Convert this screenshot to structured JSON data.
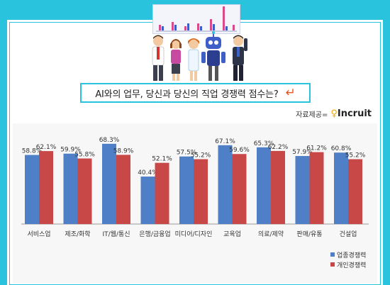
{
  "header": {
    "question": "AI와의 업무, 당신과 당신의 직업 경쟁력 점수는?",
    "arrow_icon": "return-arrow-icon",
    "source_label": "자료제공=",
    "source_brand": "Incruit"
  },
  "colors": {
    "background": "#29c3dd",
    "series_job": "#4f7fc6",
    "series_personal": "#c84848"
  },
  "chart_data": {
    "type": "bar",
    "categories": [
      "서비스업",
      "제조/화학",
      "IT/웹/통신",
      "은행/금융업",
      "미디어/디자인",
      "교육업",
      "의료/제약",
      "판매/유통",
      "건설업"
    ],
    "series": [
      {
        "name": "업종경쟁력",
        "values": [
          58.8,
          59.9,
          68.3,
          40.4,
          57.5,
          67.1,
          65.3,
          57.9,
          60.8
        ]
      },
      {
        "name": "개인경쟁력",
        "values": [
          62.1,
          55.8,
          58.9,
          52.1,
          55.2,
          59.6,
          62.2,
          61.2,
          55.2
        ]
      }
    ],
    "value_labels": [
      [
        "58.8%",
        "59.9%",
        "68.3%",
        "40.4%",
        "57.5%",
        "67.1%",
        "65.3%",
        "57.9%",
        "60.8%"
      ],
      [
        "62.1%",
        "55.8%",
        "58.9%",
        "52.1%",
        "55.2%",
        "59.6%",
        "62.2%",
        "61.2%",
        "55.2%"
      ]
    ],
    "ylim": [
      0,
      70
    ],
    "grid": false,
    "legend": "bottom-right"
  }
}
